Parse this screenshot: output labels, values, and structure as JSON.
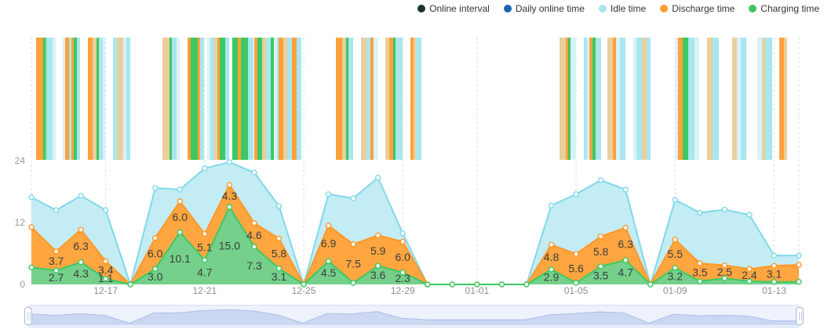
{
  "legend": {
    "items": [
      {
        "label": "Online interval",
        "color": "#1f3333"
      },
      {
        "label": "Daily online time",
        "color": "#1a66b0"
      },
      {
        "label": "Idle time",
        "color": "#a7e6f0"
      },
      {
        "label": "Discharge time",
        "color": "#ff9f30"
      },
      {
        "label": "Charging time",
        "color": "#41c463"
      }
    ]
  },
  "chart_data": {
    "type": "area",
    "stacked": true,
    "title": "",
    "xlabel": "",
    "ylabel": "",
    "ylim": [
      0,
      24
    ],
    "y_tick_labels": [
      "0",
      "12",
      "24"
    ],
    "categories": [
      "12-14",
      "12-15",
      "12-16",
      "12-17",
      "12-18",
      "12-19",
      "12-20",
      "12-21",
      "12-22",
      "12-23",
      "12-24",
      "12-25",
      "12-26",
      "12-27",
      "12-28",
      "12-29",
      "12-30",
      "12-31",
      "01-01",
      "01-02",
      "01-03",
      "01-04",
      "01-05",
      "01-06",
      "01-07",
      "01-08",
      "01-09",
      "01-10",
      "01-11",
      "01-12",
      "01-13",
      "01-14"
    ],
    "x_tick_indices": [
      3,
      7,
      11,
      15,
      18,
      22,
      26,
      30
    ],
    "x_tick_labels": [
      "12-17",
      "12-21",
      "12-25",
      "12-29",
      "01-01",
      "01-05",
      "01-09",
      "01-13"
    ],
    "grid": "vertical-dashed",
    "legend_position": "top-right",
    "series": [
      {
        "name": "Charging time",
        "line": "#3cc964",
        "fill": "#74d08a",
        "values": [
          3.3,
          2.7,
          4.3,
          1.1,
          0,
          3.0,
          10.1,
          4.7,
          15.0,
          7.3,
          3.1,
          0,
          4.5,
          0.3,
          3.6,
          2.3,
          0,
          0,
          0,
          0,
          0,
          2.9,
          0.3,
          3.5,
          4.7,
          0,
          3.2,
          0.6,
          1.2,
          0.6,
          0.5,
          0.5
        ],
        "labels": [
          "",
          "2.7",
          "4.3",
          "1.1",
          "",
          "3.0",
          "10.1",
          "4.7",
          "15.0",
          "7.3",
          "3.1",
          "",
          "4.5",
          "",
          "3.6",
          "2.3",
          "",
          "",
          "",
          "",
          "",
          "2.9",
          "",
          "3.5",
          "4.7",
          "",
          "3.2",
          "",
          "",
          "",
          "",
          ""
        ]
      },
      {
        "name": "Discharge time",
        "line": "#ff9726",
        "fill": "#ffa640",
        "values": [
          7.8,
          3.7,
          6.3,
          3.4,
          0,
          6.0,
          6.0,
          5.1,
          4.3,
          4.6,
          5.8,
          0,
          6.9,
          7.5,
          5.9,
          6.0,
          0,
          0,
          0,
          0,
          0,
          4.8,
          5.6,
          5.8,
          6.3,
          0,
          5.5,
          3.5,
          2.5,
          2.4,
          3.1,
          3.3
        ],
        "labels": [
          "",
          "3.7",
          "6.3",
          "3.4",
          "",
          "6.0",
          "6.0",
          "5.1",
          "4.3",
          "4.6",
          "5.8",
          "",
          "6.9",
          "7.5",
          "5.9",
          "6.0",
          "",
          "",
          "",
          "",
          "",
          "4.8",
          "5.6",
          "5.8",
          "6.3",
          "",
          "5.5",
          "3.5",
          "2.5",
          "2.4",
          "3.1",
          ""
        ]
      },
      {
        "name": "Idle time",
        "line": "#82d9e8",
        "fill": "#c3ecf5",
        "values": [
          5.8,
          8.0,
          6.6,
          9.9,
          0,
          9.7,
          2.3,
          12.7,
          4.4,
          9.8,
          6.3,
          0,
          6.1,
          8.9,
          11.2,
          1.6,
          0,
          0,
          0,
          0,
          0,
          7.6,
          11.6,
          10.9,
          7.4,
          0,
          7.7,
          9.8,
          10.8,
          10.5,
          2.0,
          1.8
        ],
        "labels": [
          "",
          "",
          "",
          "",
          "",
          "",
          "",
          "",
          "",
          "",
          "",
          "",
          "",
          "",
          "",
          "",
          "",
          "",
          "",
          "",
          "",
          "",
          "",
          "",
          "",
          "",
          "",
          "",
          "",
          "",
          "",
          ""
        ]
      }
    ]
  },
  "stripe_band": {
    "palette": {
      "O": "#ffa13a",
      "o": "#e9cf9d",
      "G": "#3cc862",
      "g": "#96e0a8",
      "C": "#a9e6f0",
      "c": "#d8f3f8"
    },
    "groups": [
      {
        "day": "12-14",
        "i": 0,
        "pad": 0.18,
        "segs": [
          [
            "O",
            0.3
          ],
          [
            "G",
            0.1
          ],
          [
            "g",
            0.05
          ],
          [
            "C",
            0.22
          ],
          [
            "c",
            0.13
          ]
        ]
      },
      {
        "day": "12-15",
        "i": 1,
        "pad": 0.28,
        "segs": [
          [
            "c",
            0.07
          ],
          [
            "O",
            0.16
          ],
          [
            "C",
            0.12
          ],
          [
            "O",
            0.09
          ],
          [
            "G",
            0.13
          ],
          [
            "C",
            0.13
          ]
        ]
      },
      {
        "day": "12-16",
        "i": 2,
        "pad": 0.28,
        "segs": [
          [
            "O",
            0.2
          ],
          [
            "o",
            0.14
          ],
          [
            "G",
            0.12
          ],
          [
            "C",
            0.14
          ],
          [
            "c",
            0.1
          ]
        ]
      },
      {
        "day": "12-17",
        "i": 3,
        "pad": 0.3,
        "segs": [
          [
            "C",
            0.14
          ],
          [
            "o",
            0.28
          ],
          [
            "c",
            0.12
          ],
          [
            "C",
            0.14
          ]
        ]
      },
      {
        "day": "12-19",
        "i": 5,
        "pad": 0.3,
        "segs": [
          [
            "o",
            0.28
          ],
          [
            "G",
            0.08
          ],
          [
            "C",
            0.22
          ],
          [
            "c",
            0.1
          ]
        ]
      },
      {
        "day": "12-20",
        "i": 6,
        "pad": 0.3,
        "segs": [
          [
            "O",
            0.14
          ],
          [
            "G",
            0.28
          ],
          [
            "O",
            0.08
          ],
          [
            "C",
            0.18
          ]
        ]
      },
      {
        "day": "12-21",
        "i": 7,
        "pad": 0.1,
        "segs": [
          [
            "c",
            0.12
          ],
          [
            "C",
            0.16
          ],
          [
            "o",
            0.14
          ],
          [
            "O",
            0.1
          ],
          [
            "G",
            0.22
          ],
          [
            "C",
            0.16
          ]
        ]
      },
      {
        "day": "12-22",
        "i": 8,
        "pad": 0.1,
        "segs": [
          [
            "G",
            0.25
          ],
          [
            "O",
            0.12
          ],
          [
            "G",
            0.28
          ],
          [
            "C",
            0.23
          ]
        ]
      },
      {
        "day": "12-23",
        "i": 9,
        "pad": 0.0,
        "segs": [
          [
            "O",
            0.13
          ],
          [
            "G",
            0.18
          ],
          [
            "o",
            0.18
          ],
          [
            "C",
            0.18
          ],
          [
            "G",
            0.14
          ],
          [
            "c",
            0.12
          ],
          [
            "C",
            0.07
          ]
        ]
      },
      {
        "day": "12-24",
        "i": 10,
        "pad": 0.0,
        "segs": [
          [
            "O",
            0.18
          ],
          [
            "o",
            0.14
          ],
          [
            "C",
            0.22
          ],
          [
            "O",
            0.16
          ],
          [
            "C",
            0.2
          ]
        ]
      },
      {
        "day": "12-26",
        "i": 12,
        "pad": 0.3,
        "segs": [
          [
            "O",
            0.26
          ],
          [
            "o",
            0.14
          ],
          [
            "G",
            0.1
          ],
          [
            "C",
            0.2
          ]
        ]
      },
      {
        "day": "12-27",
        "i": 13,
        "pad": 0.3,
        "segs": [
          [
            "o",
            0.22
          ],
          [
            "C",
            0.18
          ],
          [
            "O",
            0.12
          ],
          [
            "c",
            0.18
          ]
        ]
      },
      {
        "day": "12-28",
        "i": 14,
        "pad": 0.3,
        "segs": [
          [
            "o",
            0.14
          ],
          [
            "O",
            0.18
          ],
          [
            "G",
            0.1
          ],
          [
            "C",
            0.28
          ]
        ]
      },
      {
        "day": "12-29",
        "i": 15,
        "pad": 0.3,
        "segs": [
          [
            "O",
            0.14
          ],
          [
            "o",
            0.1
          ],
          [
            "C",
            0.23
          ]
        ]
      },
      {
        "day": "01-04",
        "i": 21,
        "pad": 0.33,
        "segs": [
          [
            "o",
            0.26
          ],
          [
            "O",
            0.08
          ],
          [
            "G",
            0.12
          ],
          [
            "c",
            0.21
          ]
        ]
      },
      {
        "day": "01-05",
        "i": 22,
        "pad": 0.3,
        "segs": [
          [
            "C",
            0.14
          ],
          [
            "c",
            0.1
          ],
          [
            "O",
            0.12
          ],
          [
            "G",
            0.14
          ],
          [
            "C",
            0.2
          ]
        ]
      },
      {
        "day": "01-06",
        "i": 23,
        "pad": 0.28,
        "segs": [
          [
            "o",
            0.2
          ],
          [
            "O",
            0.14
          ],
          [
            "c",
            0.14
          ],
          [
            "C",
            0.24
          ]
        ]
      },
      {
        "day": "01-07",
        "i": 24,
        "pad": 0.3,
        "segs": [
          [
            "c",
            0.14
          ],
          [
            "C",
            0.22
          ],
          [
            "o",
            0.2
          ],
          [
            "C",
            0.14
          ]
        ]
      },
      {
        "day": "01-09",
        "i": 26,
        "pad": 0.02,
        "segs": [
          [
            "c",
            0.1
          ],
          [
            "O",
            0.18
          ],
          [
            "G",
            0.22
          ],
          [
            "C",
            0.28
          ],
          [
            "c",
            0.16
          ]
        ]
      },
      {
        "day": "01-10",
        "i": 27,
        "pad": 0.3,
        "segs": [
          [
            "o",
            0.22
          ],
          [
            "C",
            0.26
          ]
        ]
      },
      {
        "day": "01-11",
        "i": 28,
        "pad": 0.3,
        "segs": [
          [
            "o",
            0.2
          ],
          [
            "c",
            0.14
          ],
          [
            "C",
            0.24
          ]
        ]
      },
      {
        "day": "01-12",
        "i": 29,
        "pad": 0.32,
        "segs": [
          [
            "c",
            0.18
          ],
          [
            "o",
            0.14
          ],
          [
            "C",
            0.28
          ]
        ]
      },
      {
        "day": "01-13",
        "i": 30,
        "pad": 0.2,
        "segs": [
          [
            "O",
            0.2
          ],
          [
            "o",
            0.12
          ]
        ]
      }
    ]
  },
  "slider": {
    "track_color": "#eef2fd",
    "area_fill": "#ccd8f2",
    "area_line": "#a9bce9"
  }
}
